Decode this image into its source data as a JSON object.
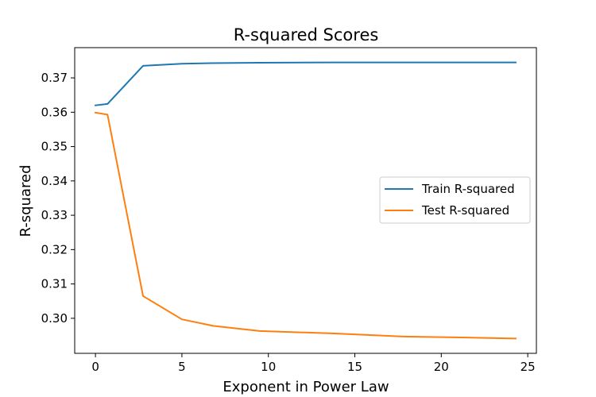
{
  "chart_data": {
    "type": "line",
    "title": "R-squared Scores",
    "xlabel": "Exponent in Power Law",
    "ylabel": "R-squared",
    "xlim": [
      -1.2,
      25.5
    ],
    "ylim": [
      0.2898,
      0.3788
    ],
    "xticks": [
      0,
      5,
      10,
      15,
      20,
      25
    ],
    "yticks": [
      0.3,
      0.31,
      0.32,
      0.33,
      0.34,
      0.35,
      0.36,
      0.37
    ],
    "ytick_labels": [
      "0.30",
      "0.31",
      "0.32",
      "0.33",
      "0.34",
      "0.35",
      "0.36",
      "0.37"
    ],
    "grid": false,
    "legend_position": "center-right",
    "series": [
      {
        "name": "Train R-squared",
        "color": "#1f77b4",
        "x": [
          0,
          0.7,
          2.75,
          5,
          6.8,
          9.5,
          13.7,
          17.7,
          21.5,
          24.3
        ],
        "y": [
          0.362,
          0.3624,
          0.3735,
          0.3741,
          0.3743,
          0.3744,
          0.3745,
          0.3745,
          0.3745,
          0.3745
        ]
      },
      {
        "name": "Test R-squared",
        "color": "#ff7f0e",
        "x": [
          0,
          0.7,
          2.75,
          5,
          6.8,
          9.5,
          13.7,
          17.7,
          21.5,
          24.3
        ],
        "y": [
          0.3599,
          0.3593,
          0.3065,
          0.2997,
          0.2978,
          0.2963,
          0.2956,
          0.2947,
          0.2944,
          0.2941
        ]
      }
    ]
  }
}
